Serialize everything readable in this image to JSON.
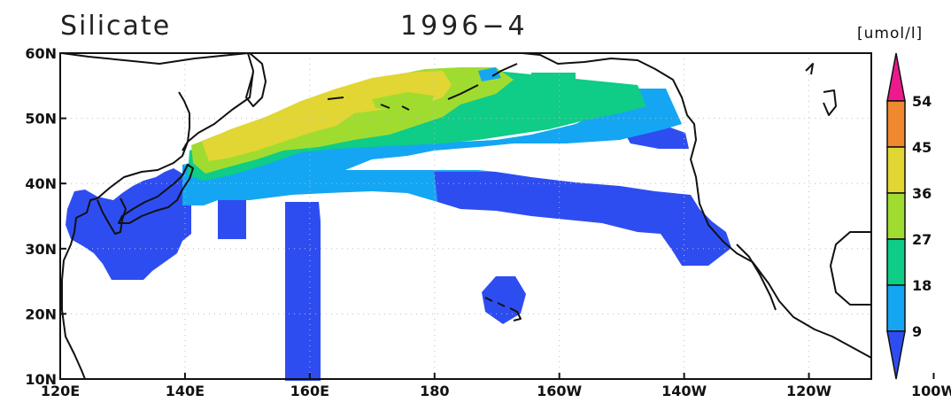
{
  "figure": {
    "variable": "Silicate",
    "time": "1996−4",
    "units": "[umol/l]"
  },
  "map": {
    "region": "North Pacific",
    "lon_range": [
      120,
      250
    ],
    "lat_range": [
      10,
      60
    ],
    "grid": true,
    "lon_ticks": [
      {
        "value": 120,
        "label": "120E"
      },
      {
        "value": 140,
        "label": "140E"
      },
      {
        "value": 160,
        "label": "160E"
      },
      {
        "value": 180,
        "label": "180"
      },
      {
        "value": 200,
        "label": "160W"
      },
      {
        "value": 220,
        "label": "140W"
      },
      {
        "value": 240,
        "label": "120W"
      },
      {
        "value": 260,
        "label": "100W"
      }
    ],
    "lat_ticks": [
      {
        "value": 60,
        "label": "60N"
      },
      {
        "value": 50,
        "label": "50N"
      },
      {
        "value": 40,
        "label": "40N"
      },
      {
        "value": 30,
        "label": "30N"
      },
      {
        "value": 20,
        "label": "20N"
      },
      {
        "value": 10,
        "label": "10N"
      }
    ]
  },
  "colorbar": {
    "levels": [
      "9",
      "18",
      "27",
      "36",
      "45",
      "54"
    ],
    "colors": [
      "#2e4df0",
      "#14a6f2",
      "#0fcc86",
      "#a0dc30",
      "#e2d634",
      "#f08830",
      "#ec1a8c"
    ]
  }
}
